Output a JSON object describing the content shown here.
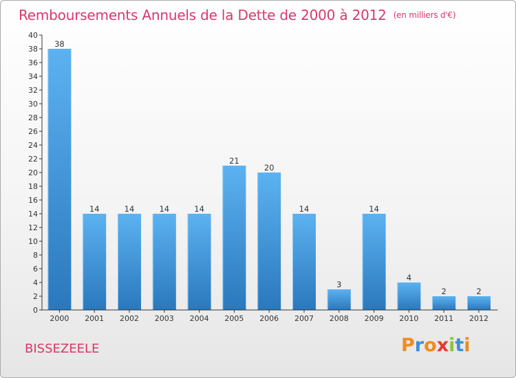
{
  "chart_data": {
    "type": "bar",
    "title": "Remboursements Annuels de la Dette de 2000 à 2012",
    "subtitle": "(en milliers d'€)",
    "categories": [
      "2000",
      "2001",
      "2002",
      "2003",
      "2004",
      "2005",
      "2006",
      "2007",
      "2008",
      "2009",
      "2010",
      "2011",
      "2012"
    ],
    "values": [
      38,
      14,
      14,
      14,
      14,
      21,
      20,
      14,
      3,
      14,
      4,
      2,
      2
    ],
    "ylim": [
      0,
      40
    ],
    "ytick_step": 2,
    "xlabel": "",
    "ylabel": "",
    "grid": false,
    "bar_color": "#4aa3e8",
    "bar_color_dark": "#2b7bc0"
  },
  "footer": {
    "city": "BISSEZEELE",
    "logo": [
      "P",
      "r",
      "o",
      "x",
      "i",
      "t",
      "i"
    ],
    "logo_colors": [
      "#f28a1e",
      "#3c8fd6",
      "#f28a1e",
      "#e63a2e",
      "#8bc53f",
      "#3c8fd6",
      "#f28a1e"
    ]
  }
}
